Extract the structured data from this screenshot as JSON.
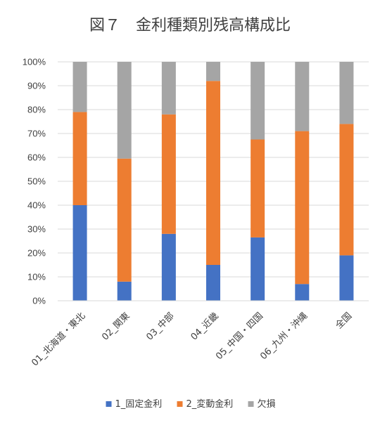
{
  "chart_data": {
    "type": "bar",
    "stacked": true,
    "title": "図７　金利種類別残高構成比",
    "xlabel": "",
    "ylabel": "",
    "ylim": [
      0,
      100
    ],
    "yticks": [
      "0%",
      "10%",
      "20%",
      "30%",
      "40%",
      "50%",
      "60%",
      "70%",
      "80%",
      "90%",
      "100%"
    ],
    "grid": true,
    "legend_position": "bottom",
    "categories": [
      "01_北海道・東北",
      "02_関東",
      "03_中部",
      "04_近畿",
      "05_中国・四国",
      "06_九州・沖縄",
      "全国"
    ],
    "series": [
      {
        "name": "1_固定金利",
        "color": "#4472C4",
        "values": [
          40,
          8,
          28,
          15,
          26.5,
          7,
          19
        ]
      },
      {
        "name": "2_変動金利",
        "color": "#ED7D31",
        "values": [
          39,
          51.5,
          50,
          77,
          41,
          64,
          55
        ]
      },
      {
        "name": "欠損",
        "color": "#A5A5A5",
        "values": [
          21,
          40.5,
          22,
          8,
          32.5,
          29,
          26
        ]
      }
    ]
  }
}
